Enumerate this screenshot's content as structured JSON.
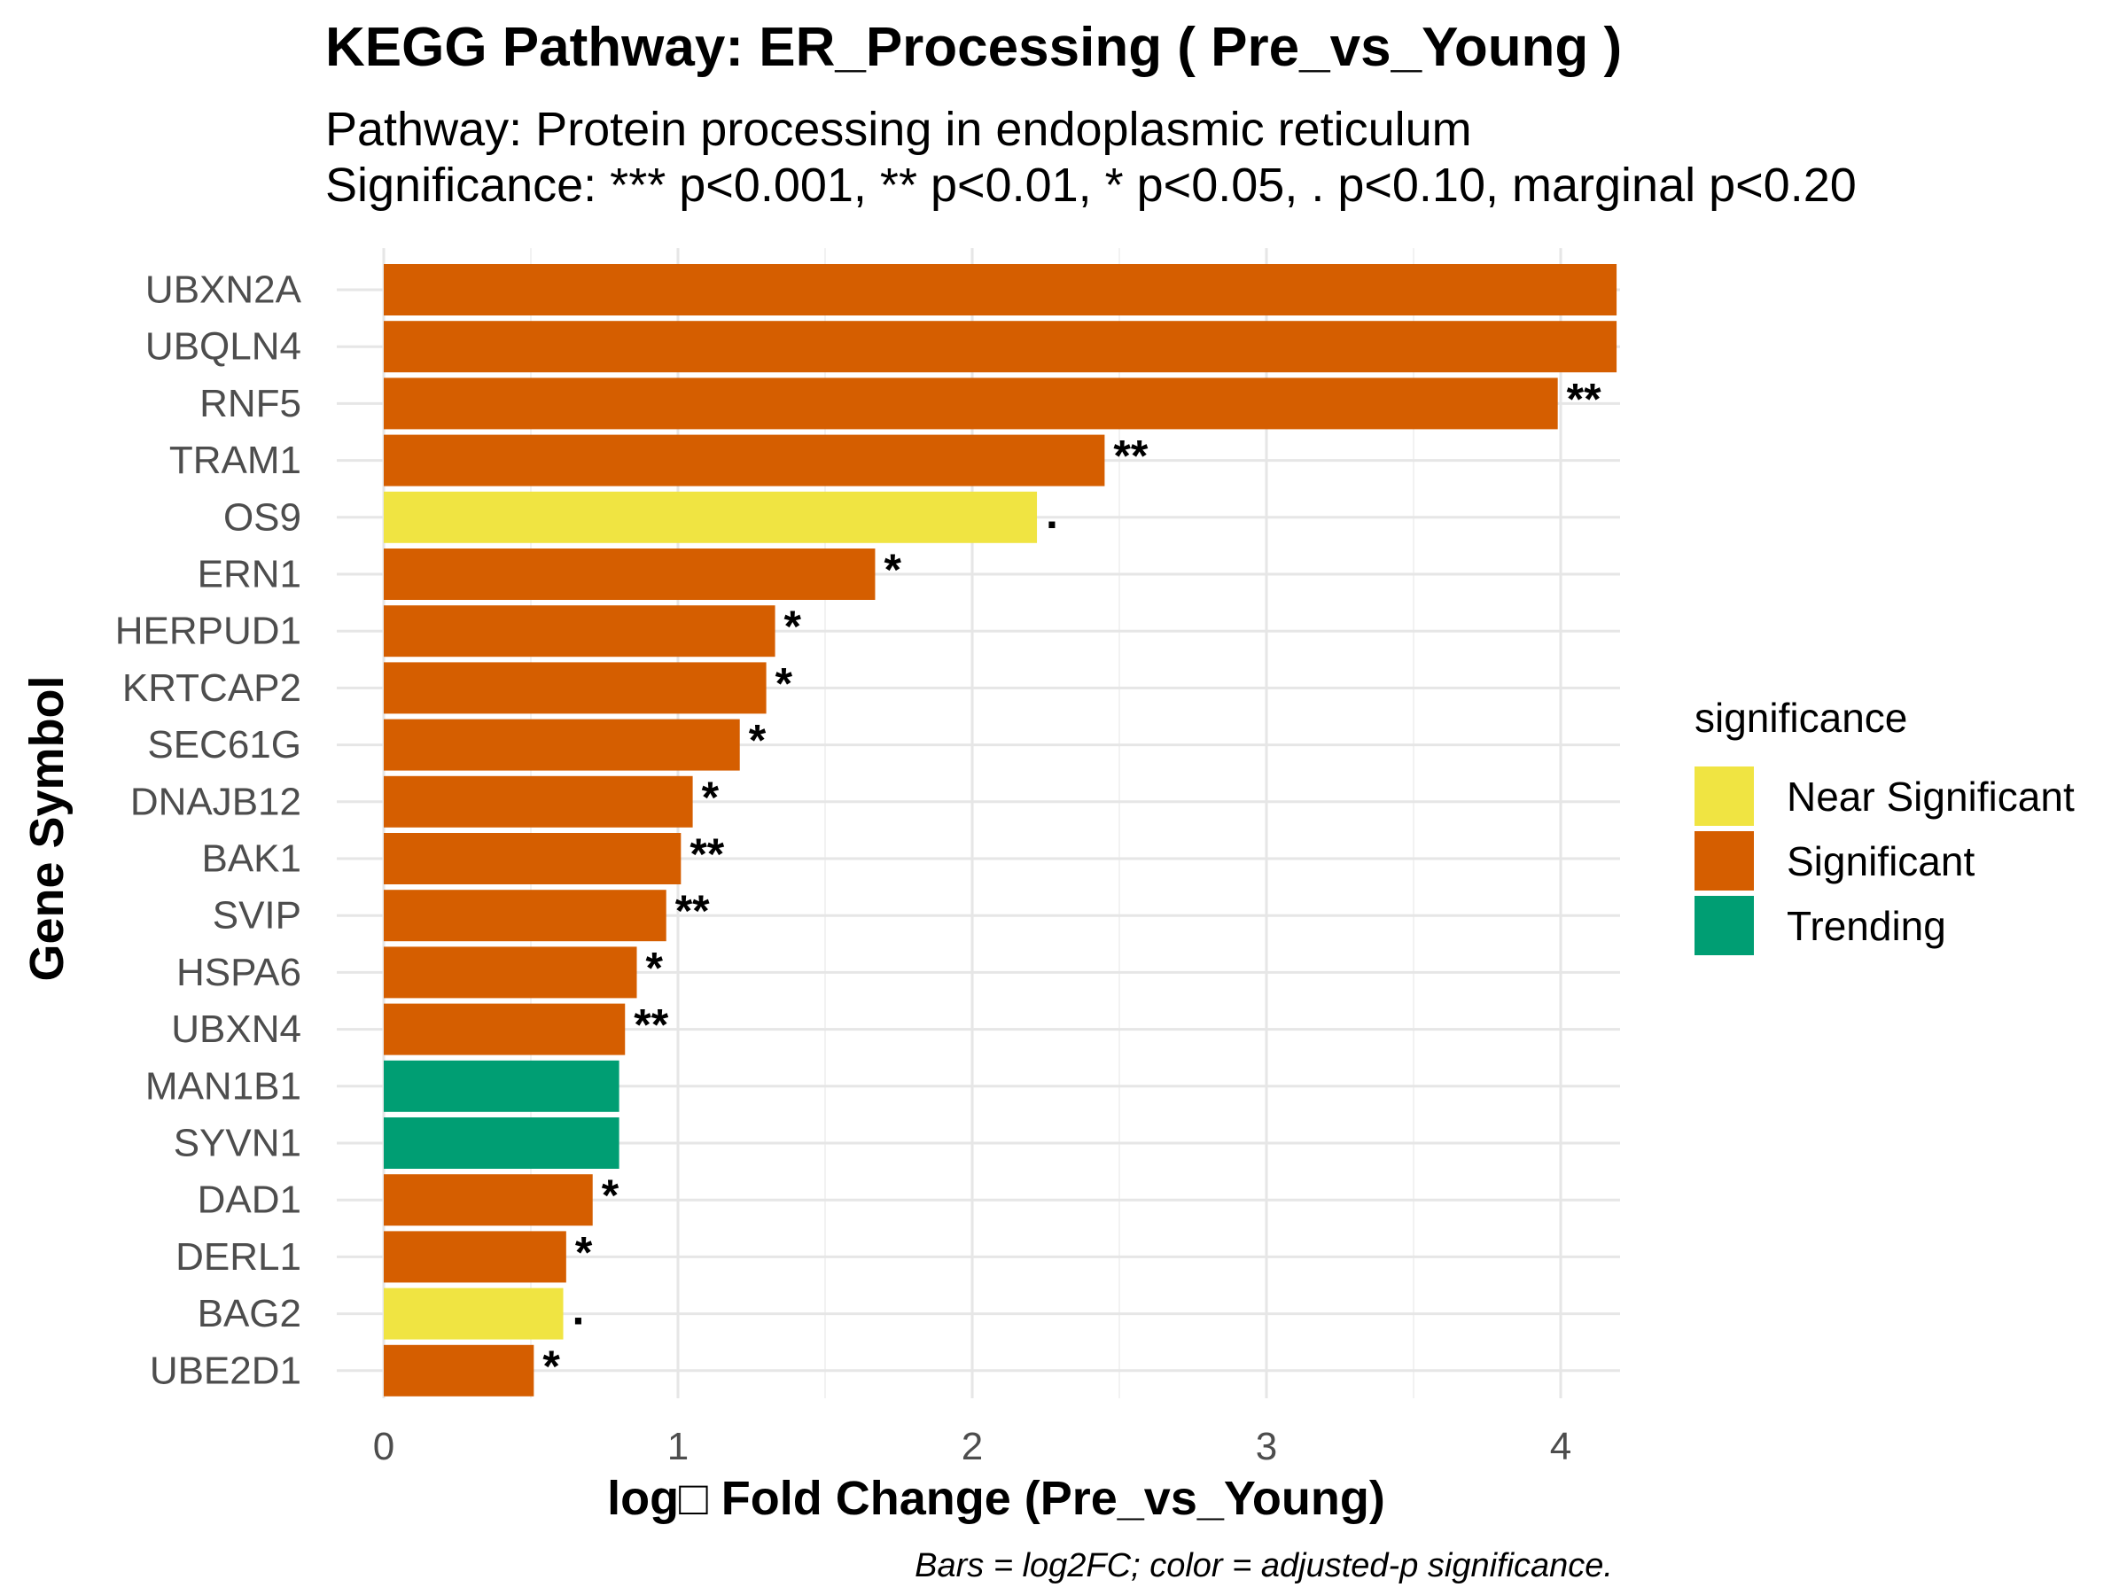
{
  "chart_data": {
    "type": "bar",
    "orientation": "horizontal",
    "title": "KEGG Pathway: ER_Processing ( Pre_vs_Young )",
    "subtitle_lines": [
      "Pathway: Protein processing in endoplasmic reticulum",
      "Significance: *** p<0.001, ** p<0.01, * p<0.05, . p<0.10, marginal p<0.20"
    ],
    "caption": "Bars = log2FC; color = adjusted-p significance.",
    "xlabel": "log□ Fold Change (Pre_vs_Young)",
    "ylabel": "Gene Symbol",
    "xlim": [
      0,
      4.2
    ],
    "xticks": [
      0,
      1,
      2,
      3,
      4
    ],
    "grid": true,
    "legend": {
      "title": "significance",
      "position": "right",
      "entries": [
        {
          "label": "Near Significant",
          "color": "#F0E442"
        },
        {
          "label": "Significant",
          "color": "#D55E00"
        },
        {
          "label": "Trending",
          "color": "#009E73"
        }
      ]
    },
    "colors": {
      "Near Significant": "#F0E442",
      "Significant": "#D55E00",
      "Trending": "#009E73"
    },
    "bars": [
      {
        "gene": "UBXN2A",
        "log2fc": 4.19,
        "significance": "Significant",
        "label": ""
      },
      {
        "gene": "UBQLN4",
        "log2fc": 4.19,
        "significance": "Significant",
        "label": ""
      },
      {
        "gene": "RNF5",
        "log2fc": 3.99,
        "significance": "Significant",
        "label": "**"
      },
      {
        "gene": "TRAM1",
        "log2fc": 2.45,
        "significance": "Significant",
        "label": "**"
      },
      {
        "gene": "OS9",
        "log2fc": 2.22,
        "significance": "Near Significant",
        "label": "."
      },
      {
        "gene": "ERN1",
        "log2fc": 1.67,
        "significance": "Significant",
        "label": "*"
      },
      {
        "gene": "HERPUD1",
        "log2fc": 1.33,
        "significance": "Significant",
        "label": "*"
      },
      {
        "gene": "KRTCAP2",
        "log2fc": 1.3,
        "significance": "Significant",
        "label": "*"
      },
      {
        "gene": "SEC61G",
        "log2fc": 1.21,
        "significance": "Significant",
        "label": "*"
      },
      {
        "gene": "DNAJB12",
        "log2fc": 1.05,
        "significance": "Significant",
        "label": "*"
      },
      {
        "gene": "BAK1",
        "log2fc": 1.01,
        "significance": "Significant",
        "label": "**"
      },
      {
        "gene": "SVIP",
        "log2fc": 0.96,
        "significance": "Significant",
        "label": "**"
      },
      {
        "gene": "HSPA6",
        "log2fc": 0.86,
        "significance": "Significant",
        "label": "*"
      },
      {
        "gene": "UBXN4",
        "log2fc": 0.82,
        "significance": "Significant",
        "label": "**"
      },
      {
        "gene": "MAN1B1",
        "log2fc": 0.8,
        "significance": "Trending",
        "label": ""
      },
      {
        "gene": "SYVN1",
        "log2fc": 0.8,
        "significance": "Trending",
        "label": ""
      },
      {
        "gene": "DAD1",
        "log2fc": 0.71,
        "significance": "Significant",
        "label": "*"
      },
      {
        "gene": "DERL1",
        "log2fc": 0.62,
        "significance": "Significant",
        "label": "*"
      },
      {
        "gene": "BAG2",
        "log2fc": 0.61,
        "significance": "Near Significant",
        "label": "."
      },
      {
        "gene": "UBE2D1",
        "log2fc": 0.51,
        "significance": "Significant",
        "label": "*"
      }
    ]
  }
}
